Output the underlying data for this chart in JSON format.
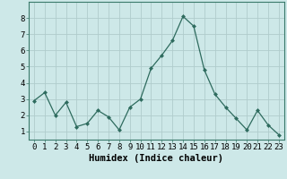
{
  "x": [
    0,
    1,
    2,
    3,
    4,
    5,
    6,
    7,
    8,
    9,
    10,
    11,
    12,
    13,
    14,
    15,
    16,
    17,
    18,
    19,
    20,
    21,
    22,
    23
  ],
  "y": [
    2.9,
    3.4,
    2.0,
    2.8,
    1.3,
    1.5,
    2.3,
    1.9,
    1.1,
    2.5,
    3.0,
    4.9,
    5.7,
    6.6,
    8.1,
    7.5,
    4.8,
    3.3,
    2.5,
    1.8,
    1.1,
    2.3,
    1.4,
    0.8
  ],
  "line_color": "#2e6b5e",
  "marker": "D",
  "marker_size": 2.5,
  "bg_color": "#cde8e8",
  "grid_color": "#b0cccc",
  "xlabel": "Humidex (Indice chaleur)",
  "ylim": [
    0.5,
    9.0
  ],
  "xlim": [
    -0.5,
    23.5
  ],
  "yticks": [
    1,
    2,
    3,
    4,
    5,
    6,
    7,
    8
  ],
  "xticks": [
    0,
    1,
    2,
    3,
    4,
    5,
    6,
    7,
    8,
    9,
    10,
    11,
    12,
    13,
    14,
    15,
    16,
    17,
    18,
    19,
    20,
    21,
    22,
    23
  ],
  "xlabel_fontsize": 7.5,
  "tick_fontsize": 6.5
}
